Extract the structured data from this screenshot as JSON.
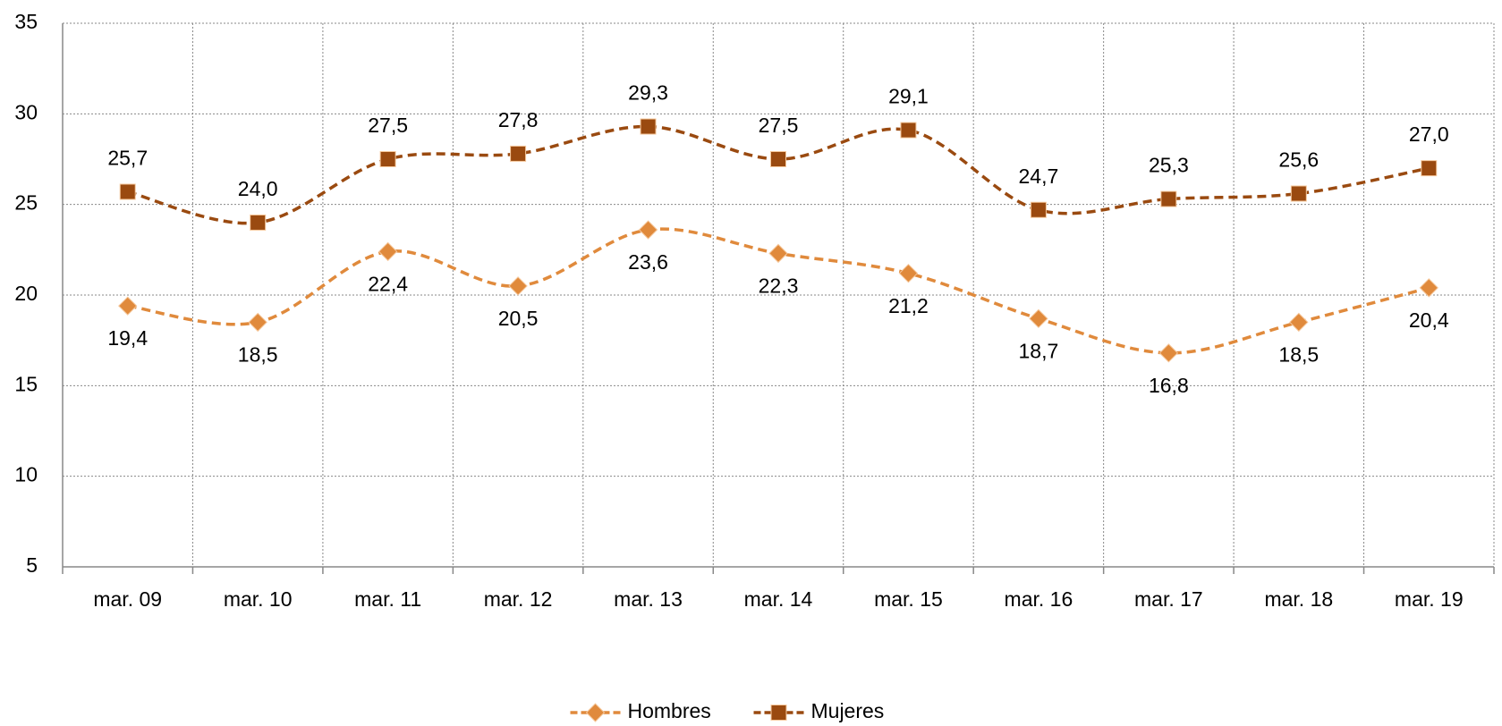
{
  "chart_data": {
    "type": "line",
    "categories": [
      "mar. 09",
      "mar. 10",
      "mar. 11",
      "mar. 12",
      "mar. 13",
      "mar. 14",
      "mar. 15",
      "mar. 16",
      "mar. 17",
      "mar. 18",
      "mar. 19"
    ],
    "series": [
      {
        "name": "Hombres",
        "color": "#e08a3c",
        "marker": "diamond",
        "label_position": "below",
        "values": [
          19.4,
          18.5,
          22.4,
          20.5,
          23.6,
          22.3,
          21.2,
          18.7,
          16.8,
          18.5,
          20.4
        ],
        "value_labels": [
          "19,4",
          "18,5",
          "22,4",
          "20,5",
          "23,6",
          "22,3",
          "21,2",
          "18,7",
          "16,8",
          "18,5",
          "20,4"
        ]
      },
      {
        "name": "Mujeres",
        "color": "#9a4a10",
        "marker": "square",
        "label_position": "above",
        "values": [
          25.7,
          24.0,
          27.5,
          27.8,
          29.3,
          27.5,
          29.1,
          24.7,
          25.3,
          25.6,
          27.0
        ],
        "value_labels": [
          "25,7",
          "24,0",
          "27,5",
          "27,8",
          "29,3",
          "27,5",
          "29,1",
          "24,7",
          "25,3",
          "25,6",
          "27,0"
        ]
      }
    ],
    "ylim": [
      5,
      35
    ],
    "yticks": [
      5,
      10,
      15,
      20,
      25,
      30,
      35
    ],
    "grid": true,
    "legend": "bottom"
  }
}
